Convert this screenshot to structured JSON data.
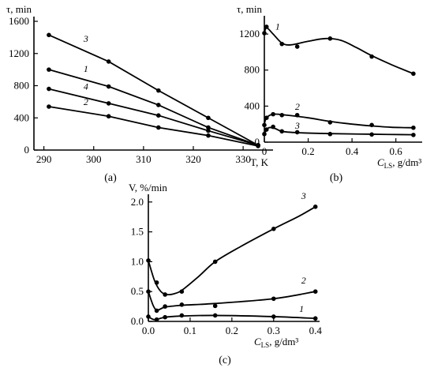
{
  "colors": {
    "line": "#000000",
    "background": "#ffffff"
  },
  "chart_data": [
    {
      "panel": "(a)",
      "type": "line",
      "xlabel": "T, K",
      "ylabel": "τ, min",
      "xlim": [
        288,
        336
      ],
      "ylim": [
        0,
        1600
      ],
      "xticks": [
        290,
        300,
        310,
        320,
        330
      ],
      "yticks": [
        0,
        400,
        800,
        1200,
        1600
      ],
      "grid": false,
      "series": [
        {
          "name": "3",
          "x": [
            291,
            303,
            313,
            323,
            333
          ],
          "y": [
            1430,
            1100,
            740,
            400,
            60
          ]
        },
        {
          "name": "1",
          "x": [
            291,
            303,
            313,
            323,
            333
          ],
          "y": [
            1000,
            790,
            560,
            280,
            60
          ]
        },
        {
          "name": "4",
          "x": [
            291,
            303,
            313,
            323,
            333
          ],
          "y": [
            760,
            580,
            430,
            240,
            60
          ]
        },
        {
          "name": "2",
          "x": [
            291,
            303,
            313,
            323,
            333
          ],
          "y": [
            540,
            420,
            280,
            180,
            50
          ]
        }
      ]
    },
    {
      "panel": "(b)",
      "type": "line",
      "xlabel": "C_LS, g/dm³",
      "ylabel": "τ, min",
      "xlim": [
        0,
        0.72
      ],
      "ylim": [
        0,
        1350
      ],
      "xticks": [
        0,
        0.2,
        0.4,
        0.6
      ],
      "yticks": [
        0,
        400,
        800,
        1200
      ],
      "grid": false,
      "series": [
        {
          "name": "1",
          "points": [
            [
              0,
              1210
            ],
            [
              0.01,
              1280
            ],
            [
              0.08,
              1090
            ],
            [
              0.15,
              1060
            ],
            [
              0.3,
              1150
            ],
            [
              0.49,
              950
            ],
            [
              0.68,
              760
            ]
          ],
          "curve": [
            [
              0,
              1200
            ],
            [
              0.01,
              1270
            ],
            [
              0.04,
              1200
            ],
            [
              0.08,
              1100
            ],
            [
              0.12,
              1080
            ],
            [
              0.2,
              1120
            ],
            [
              0.28,
              1150
            ],
            [
              0.35,
              1130
            ],
            [
              0.42,
              1050
            ],
            [
              0.49,
              960
            ],
            [
              0.58,
              860
            ],
            [
              0.68,
              760
            ]
          ]
        },
        {
          "name": "2",
          "points": [
            [
              0,
              190
            ],
            [
              0.01,
              270
            ],
            [
              0.04,
              310
            ],
            [
              0.08,
              300
            ],
            [
              0.15,
              300
            ],
            [
              0.3,
              220
            ],
            [
              0.49,
              190
            ],
            [
              0.68,
              160
            ]
          ],
          "curve": [
            [
              0,
              200
            ],
            [
              0.01,
              270
            ],
            [
              0.04,
              310
            ],
            [
              0.1,
              300
            ],
            [
              0.2,
              270
            ],
            [
              0.3,
              230
            ],
            [
              0.4,
              200
            ],
            [
              0.49,
              180
            ],
            [
              0.58,
              165
            ],
            [
              0.68,
              160
            ]
          ]
        },
        {
          "name": "3",
          "points": [
            [
              0,
              90
            ],
            [
              0.01,
              140
            ],
            [
              0.04,
              170
            ],
            [
              0.08,
              120
            ],
            [
              0.15,
              110
            ],
            [
              0.3,
              90
            ],
            [
              0.49,
              85
            ],
            [
              0.68,
              80
            ]
          ],
          "curve": [
            [
              0,
              95
            ],
            [
              0.02,
              160
            ],
            [
              0.05,
              150
            ],
            [
              0.08,
              120
            ],
            [
              0.15,
              105
            ],
            [
              0.3,
              95
            ],
            [
              0.49,
              88
            ],
            [
              0.68,
              82
            ]
          ]
        }
      ]
    },
    {
      "panel": "(c)",
      "type": "line",
      "xlabel": "C_LS, g/dm³",
      "ylabel": "V, %/min",
      "xlim": [
        0,
        0.41
      ],
      "ylim": [
        0,
        2.05
      ],
      "xticks": [
        0,
        0.1,
        0.2,
        0.3,
        0.4
      ],
      "yticks": [
        0,
        0.5,
        1.0,
        1.5,
        2.0
      ],
      "grid": false,
      "series": [
        {
          "name": "3",
          "points": [
            [
              0,
              1.02
            ],
            [
              0.02,
              0.65
            ],
            [
              0.04,
              0.45
            ],
            [
              0.08,
              0.5
            ],
            [
              0.16,
              1.0
            ],
            [
              0.3,
              1.55
            ],
            [
              0.4,
              1.92
            ]
          ],
          "curve": [
            [
              0,
              1.02
            ],
            [
              0.015,
              0.68
            ],
            [
              0.03,
              0.5
            ],
            [
              0.045,
              0.45
            ],
            [
              0.06,
              0.46
            ],
            [
              0.08,
              0.52
            ],
            [
              0.12,
              0.75
            ],
            [
              0.16,
              1.0
            ],
            [
              0.22,
              1.25
            ],
            [
              0.3,
              1.55
            ],
            [
              0.36,
              1.76
            ],
            [
              0.4,
              1.92
            ]
          ]
        },
        {
          "name": "2",
          "points": [
            [
              0,
              0.5
            ],
            [
              0.02,
              0.18
            ],
            [
              0.04,
              0.25
            ],
            [
              0.08,
              0.28
            ],
            [
              0.16,
              0.26
            ],
            [
              0.3,
              0.38
            ],
            [
              0.4,
              0.5
            ]
          ],
          "curve": [
            [
              0,
              0.5
            ],
            [
              0.012,
              0.26
            ],
            [
              0.022,
              0.19
            ],
            [
              0.04,
              0.24
            ],
            [
              0.08,
              0.27
            ],
            [
              0.16,
              0.3
            ],
            [
              0.3,
              0.38
            ],
            [
              0.4,
              0.5
            ]
          ]
        },
        {
          "name": "1",
          "points": [
            [
              0,
              0.08
            ],
            [
              0.02,
              0.03
            ],
            [
              0.04,
              0.07
            ],
            [
              0.08,
              0.1
            ],
            [
              0.16,
              0.1
            ],
            [
              0.3,
              0.08
            ],
            [
              0.4,
              0.05
            ]
          ],
          "curve": [
            [
              0,
              0.08
            ],
            [
              0.015,
              0.03
            ],
            [
              0.04,
              0.07
            ],
            [
              0.08,
              0.09
            ],
            [
              0.16,
              0.1
            ],
            [
              0.3,
              0.08
            ],
            [
              0.4,
              0.05
            ]
          ]
        }
      ]
    }
  ]
}
